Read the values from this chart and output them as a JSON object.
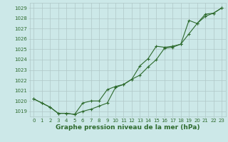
{
  "title": "Graphe pression niveau de la mer (hPa)",
  "x_hours": [
    0,
    1,
    2,
    3,
    4,
    5,
    6,
    7,
    8,
    9,
    10,
    11,
    12,
    13,
    14,
    15,
    16,
    17,
    18,
    19,
    20,
    21,
    22,
    23
  ],
  "series1": [
    1020.2,
    1019.8,
    1019.4,
    1018.8,
    1018.8,
    1018.7,
    1019.0,
    1019.2,
    1019.5,
    1019.8,
    1021.3,
    1021.6,
    1022.1,
    1022.5,
    1023.3,
    1024.0,
    1025.1,
    1025.2,
    1025.5,
    1026.5,
    1027.5,
    1028.2,
    1028.5,
    1029.0
  ],
  "series2": [
    1020.2,
    1019.8,
    1019.4,
    1018.8,
    1018.8,
    1018.7,
    1019.8,
    1020.0,
    1020.0,
    1021.1,
    1021.4,
    1021.6,
    1022.1,
    1023.4,
    1024.1,
    1025.3,
    1025.2,
    1025.3,
    1025.5,
    1027.8,
    1027.5,
    1028.4,
    1028.5,
    1029.0
  ],
  "line_color": "#2d6a2d",
  "bg_color": "#cce8e8",
  "grid_color": "#b0c8c8",
  "ylim": [
    1018.5,
    1029.5
  ],
  "yticks": [
    1019,
    1020,
    1021,
    1022,
    1023,
    1024,
    1025,
    1026,
    1027,
    1028,
    1029
  ],
  "marker": "+",
  "marker_size": 3,
  "marker_edge_width": 0.8,
  "line_width": 0.8,
  "title_fontsize": 6.5,
  "tick_fontsize": 5.0,
  "fig_width": 3.2,
  "fig_height": 2.0,
  "dpi": 100
}
